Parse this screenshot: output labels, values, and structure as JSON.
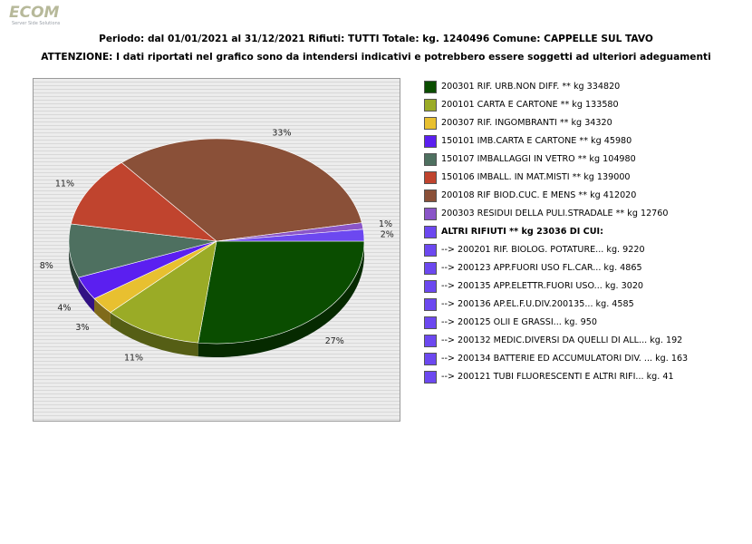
{
  "logo": {
    "word": "ECOM",
    "tagline": "Server Side Solutions"
  },
  "header": {
    "line1": "Periodo: dal 01/01/2021 al 31/12/2021 Rifiuti: TUTTI   Totale: kg. 1240496    Comune: CAPPELLE SUL TAVO",
    "line2": "ATTENZIONE: I dati riportati nel grafico sono da intendersi indicativi e potrebbero essere soggetti ad ulteriori adeguamenti"
  },
  "chart_data": {
    "type": "pie",
    "title": "",
    "slices": [
      {
        "label": "200301 RIF. URB.NON DIFF. ** kg 334820",
        "value": 334820,
        "pct_label": "27%",
        "color": "#0a4d00"
      },
      {
        "label": "200101 CARTA E CARTONE ** kg 133580",
        "value": 133580,
        "pct_label": "11%",
        "color": "#9aab26"
      },
      {
        "label": "200307 RIF. INGOMBRANTI ** kg 34320",
        "value": 34320,
        "pct_label": "3%",
        "color": "#e8c030"
      },
      {
        "label": "150101 IMB.CARTA E CARTONE ** kg 45980",
        "value": 45980,
        "pct_label": "4%",
        "color": "#5b1ff0"
      },
      {
        "label": "150107 IMBALLAGGI IN VETRO ** kg 104980",
        "value": 104980,
        "pct_label": "8%",
        "color": "#4e7060"
      },
      {
        "label": "150106 IMBALL. IN MAT.MISTI ** kg 139000",
        "value": 139000,
        "pct_label": "11%",
        "color": "#c0442e"
      },
      {
        "label": "200108 RIF BIOD.CUC. E MENS ** kg 412020",
        "value": 412020,
        "pct_label": "33%",
        "color": "#8a5038"
      },
      {
        "label": "200303 RESIDUI DELLA PULI.STRADALE ** kg 12760",
        "value": 12760,
        "pct_label": "1%",
        "color": "#8a55c8"
      },
      {
        "label": "ALTRI RIFIUTI ** kg 23036 DI CUI:",
        "value": 23036,
        "pct_label": "2%",
        "color": "#6c48f0"
      }
    ],
    "sub_items": [
      {
        "label": "-->  200201 RIF. BIOLOG. POTATURE... kg. 9220",
        "value": 9220
      },
      {
        "label": "-->  200123 APP.FUORI USO FL.CAR... kg. 4865",
        "value": 4865
      },
      {
        "label": "-->  200135 APP.ELETTR.FUORI USO... kg. 3020",
        "value": 3020
      },
      {
        "label": "-->  200136 AP.EL.F.U.DIV.200135... kg. 4585",
        "value": 4585
      },
      {
        "label": "-->  200125 OLII E GRASSI... kg. 950",
        "value": 950
      },
      {
        "label": "-->  200132 MEDIC.DIVERSI DA QUELLI DI ALL... kg. 192",
        "value": 192
      },
      {
        "label": "-->  200134 BATTERIE ED ACCUMULATORI DIV. ... kg. 163",
        "value": 163
      },
      {
        "label": "-->  200121 TUBI FLUORESCENTI E ALTRI RIFI... kg. 41",
        "value": 41
      }
    ],
    "sub_item_color": "#6c48f0",
    "legend_position": "right"
  }
}
